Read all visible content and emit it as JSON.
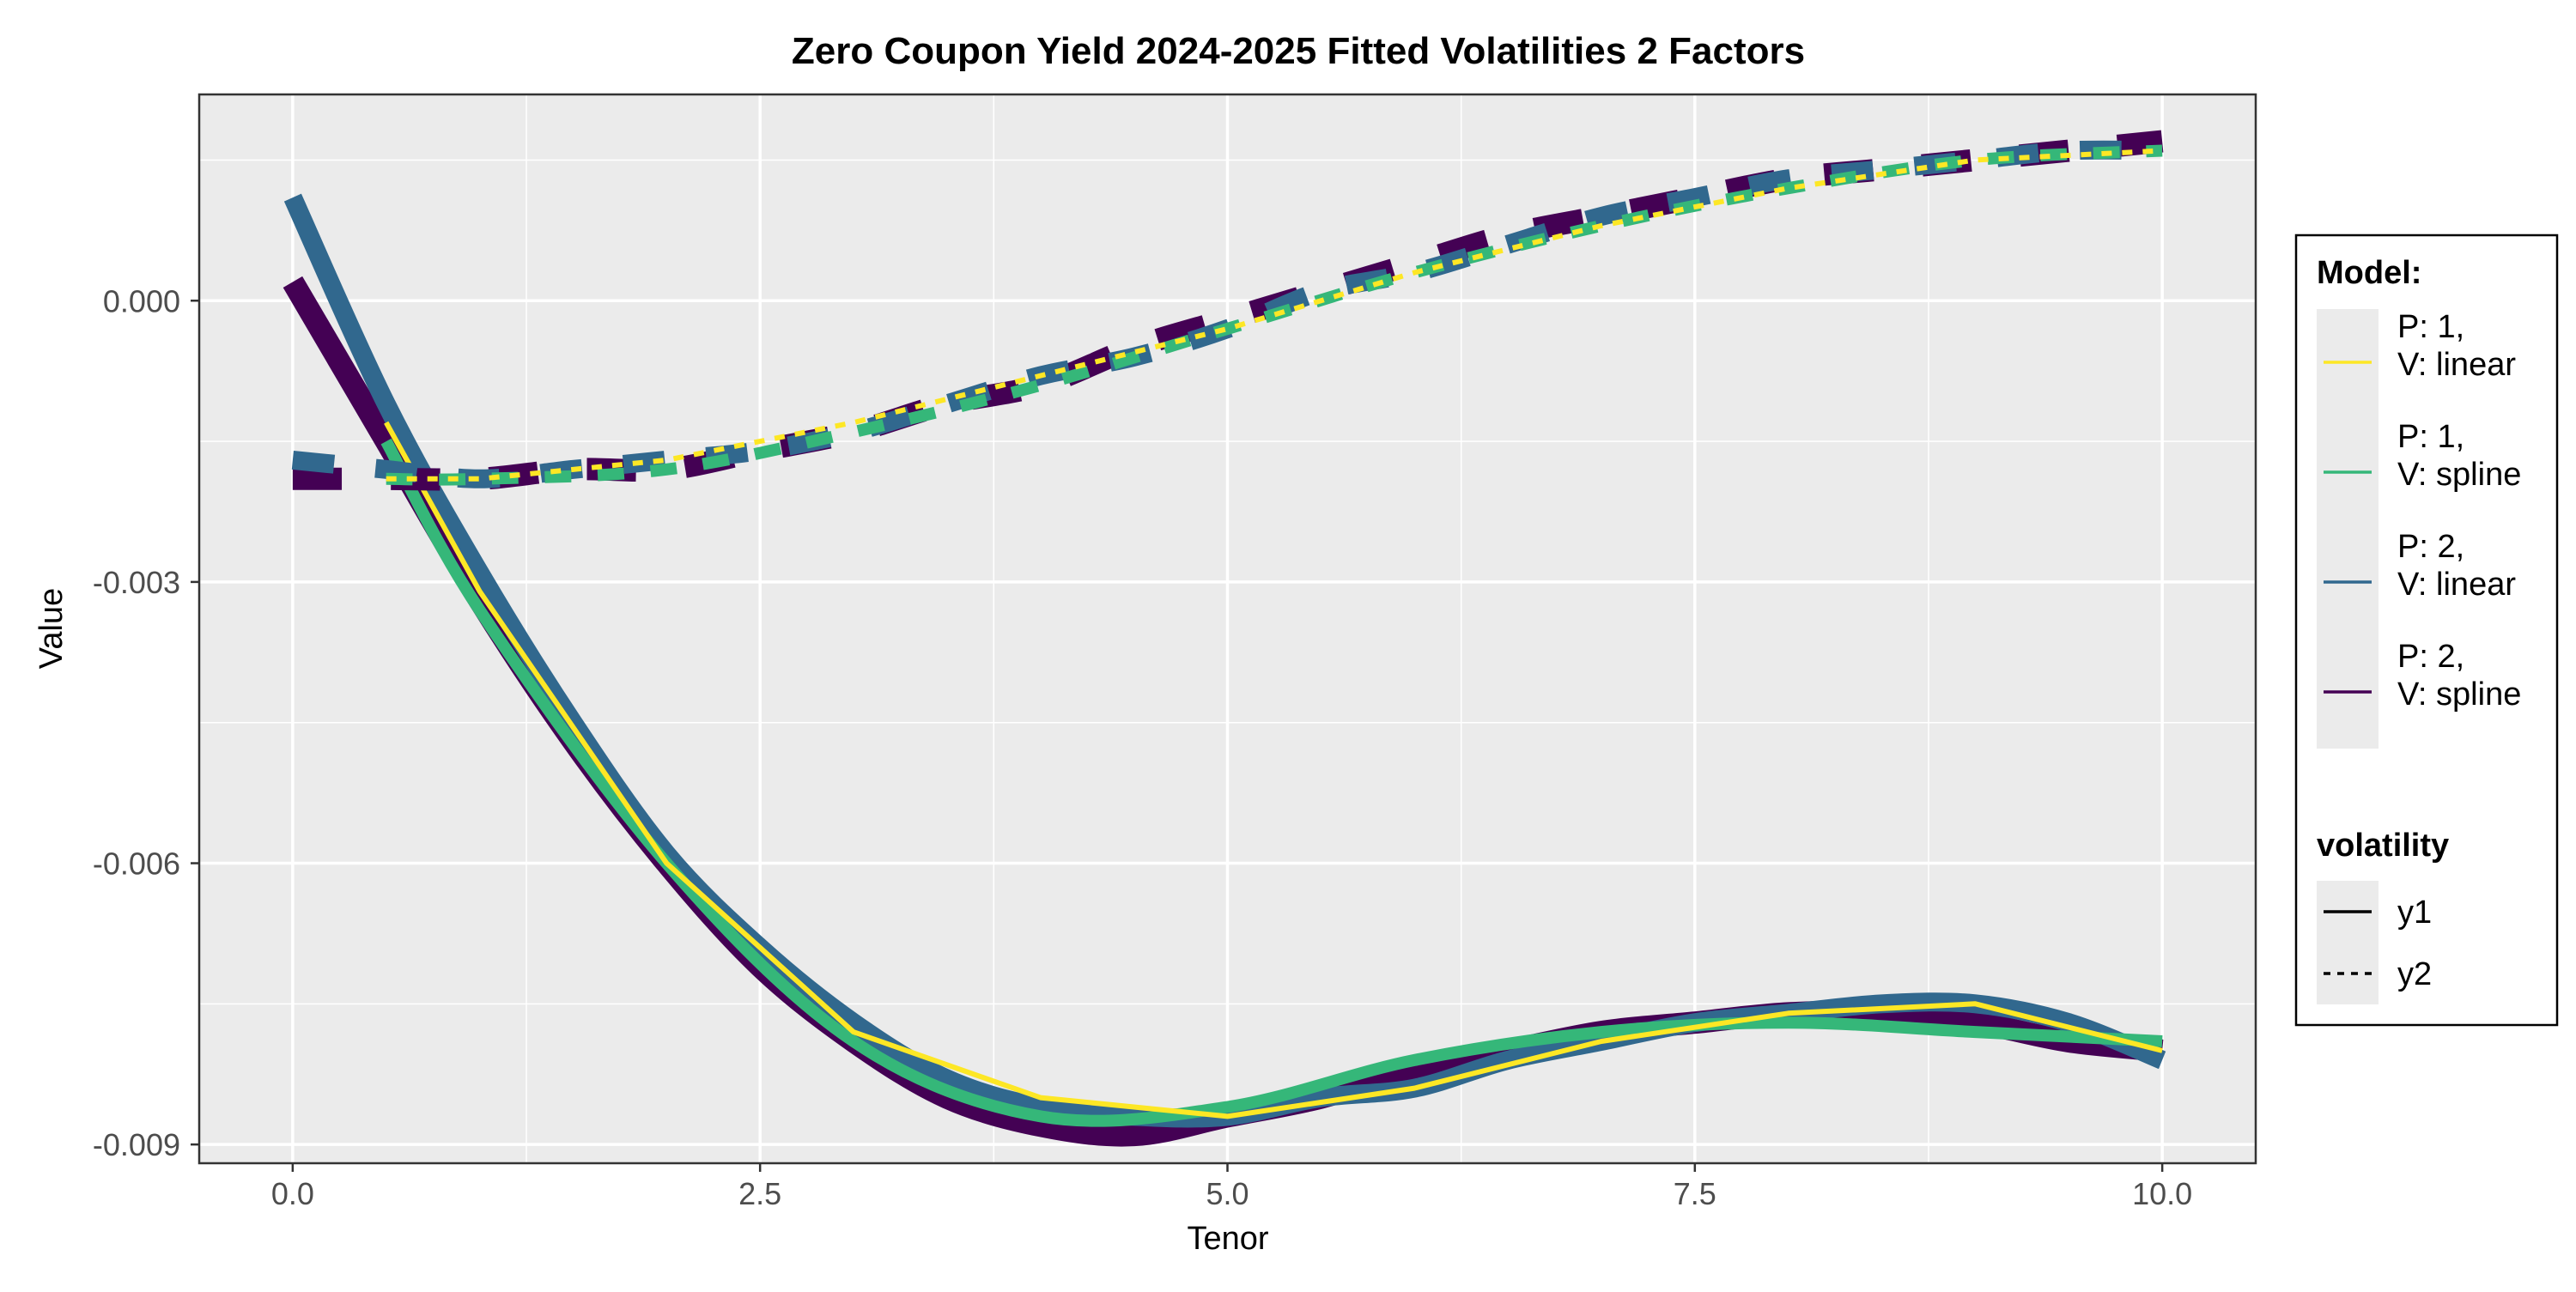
{
  "chart_data": {
    "type": "line",
    "title": "Zero Coupon Yield 2024-2025 Fitted Volatilities 2 Factors",
    "xlabel": "Tenor",
    "ylabel": "Value",
    "xlim": [
      -0.5,
      10.5
    ],
    "ylim": [
      -0.0092,
      0.0022
    ],
    "x_ticks": [
      0,
      2.5,
      5,
      7.5,
      10
    ],
    "x_tick_labels": [
      "0.0",
      "2.5",
      "5.0",
      "7.5",
      "10.0"
    ],
    "y_ticks": [
      -0.009,
      -0.006,
      -0.003,
      0
    ],
    "y_tick_labels": [
      "-0.009",
      "-0.006",
      "-0.003",
      "0.000"
    ],
    "grid": true,
    "legend_position": "right",
    "legend": {
      "model_title": "Model:",
      "model_entries": [
        {
          "line1": "P: 1,",
          "line2": "V: linear",
          "color": "#FDE725"
        },
        {
          "line1": "P: 1,",
          "line2": "V: spline",
          "color": "#35B779"
        },
        {
          "line1": "P: 2,",
          "line2": "V: linear",
          "color": "#31688E"
        },
        {
          "line1": "P: 2,",
          "line2": "V: spline",
          "color": "#440154"
        }
      ],
      "volatility_title": "volatility",
      "volatility_entries": [
        {
          "label": "y1",
          "dash": "solid"
        },
        {
          "label": "y2",
          "dash": "dashed"
        }
      ]
    },
    "series": [
      {
        "model": "P: 2, V: spline",
        "volatility": "y1",
        "color": "#440154",
        "x": [
          0,
          0.5,
          1,
          1.5,
          2,
          2.5,
          3,
          3.5,
          4,
          4.5,
          5,
          5.5,
          6,
          6.5,
          7,
          7.5,
          8,
          8.5,
          9,
          9.5,
          10
        ],
        "y": [
          0.0002,
          -0.0015,
          -0.0032,
          -0.0047,
          -0.006,
          -0.0071,
          -0.0079,
          -0.0085,
          -0.0088,
          -0.0089,
          -0.0087,
          -0.0085,
          -0.0082,
          -0.008,
          -0.0078,
          -0.0077,
          -0.0076,
          -0.0076,
          -0.0077,
          -0.0079,
          -0.008
        ]
      },
      {
        "model": "P: 2, V: linear",
        "volatility": "y1",
        "color": "#31688E",
        "x": [
          0,
          0.5,
          1,
          1.5,
          2,
          2.5,
          3,
          3.5,
          4,
          4.5,
          5,
          5.5,
          6,
          6.5,
          7,
          7.5,
          8,
          8.5,
          9,
          9.5,
          10
        ],
        "y": [
          0.0011,
          -0.0011,
          -0.0029,
          -0.0045,
          -0.0059,
          -0.0069,
          -0.0077,
          -0.0083,
          -0.0086,
          -0.0087,
          -0.0087,
          -0.0085,
          -0.0084,
          -0.0081,
          -0.0079,
          -0.0077,
          -0.0076,
          -0.0075,
          -0.0075,
          -0.0077,
          -0.0081
        ]
      },
      {
        "model": "P: 1, V: spline",
        "volatility": "y1",
        "color": "#35B779",
        "x": [
          0.5,
          1,
          2,
          3,
          4,
          5,
          6,
          7,
          8,
          9,
          10
        ],
        "y": [
          -0.0015,
          -0.0033,
          -0.006,
          -0.0079,
          -0.0087,
          -0.0086,
          -0.0081,
          -0.0078,
          -0.0077,
          -0.0078,
          -0.0079
        ]
      },
      {
        "model": "P: 1, V: linear",
        "volatility": "y1",
        "color": "#FDE725",
        "x": [
          0.5,
          1,
          2,
          3,
          4,
          5,
          6,
          7,
          8,
          9,
          10
        ],
        "y": [
          -0.0013,
          -0.0031,
          -0.006,
          -0.0078,
          -0.0085,
          -0.0087,
          -0.0084,
          -0.0079,
          -0.0076,
          -0.0075,
          -0.008
        ]
      },
      {
        "model": "P: 2, V: spline",
        "volatility": "y2",
        "color": "#440154",
        "x": [
          0,
          0.5,
          1,
          1.5,
          2,
          2.5,
          3,
          3.5,
          4,
          4.5,
          5,
          5.5,
          6,
          6.5,
          7,
          7.5,
          8,
          8.5,
          9,
          9.5,
          10
        ],
        "y": [
          -0.0019,
          -0.0019,
          -0.0019,
          -0.0018,
          -0.0018,
          -0.0016,
          -0.0014,
          -0.0011,
          -0.0009,
          -0.0005,
          -0.0002,
          0.0001,
          0.0004,
          0.0007,
          0.0009,
          0.0011,
          0.0013,
          0.0014,
          0.0015,
          0.0016,
          0.0017
        ]
      },
      {
        "model": "P: 2, V: linear",
        "volatility": "y2",
        "color": "#31688E",
        "x": [
          0,
          0.5,
          1,
          1.5,
          2,
          2.5,
          3,
          3.5,
          4,
          4.5,
          5,
          5.5,
          6,
          6.5,
          7,
          7.5,
          8,
          8.5,
          9,
          9.5,
          10
        ],
        "y": [
          -0.0017,
          -0.0018,
          -0.0019,
          -0.0018,
          -0.0017,
          -0.0016,
          -0.0014,
          -0.0011,
          -0.0008,
          -0.0006,
          -0.0003,
          0.0001,
          0.0003,
          0.0006,
          0.0009,
          0.0011,
          0.0013,
          0.0014,
          0.0015,
          0.0016,
          0.0016
        ]
      },
      {
        "model": "P: 1, V: spline",
        "volatility": "y2",
        "color": "#35B779",
        "x": [
          0.5,
          1,
          2,
          3,
          4,
          5,
          6,
          7,
          8,
          9,
          10
        ],
        "y": [
          -0.0019,
          -0.0019,
          -0.0018,
          -0.0014,
          -0.0009,
          -0.0003,
          0.0003,
          0.0008,
          0.0012,
          0.0015,
          0.0016
        ]
      },
      {
        "model": "P: 1, V: linear",
        "volatility": "y2",
        "color": "#FDE725",
        "x": [
          0.5,
          1,
          2,
          3,
          4,
          5,
          6,
          7,
          8,
          9,
          10
        ],
        "y": [
          -0.0019,
          -0.0019,
          -0.0017,
          -0.0013,
          -0.0008,
          -0.0003,
          0.0003,
          0.0008,
          0.0012,
          0.0015,
          0.0016
        ]
      }
    ]
  }
}
